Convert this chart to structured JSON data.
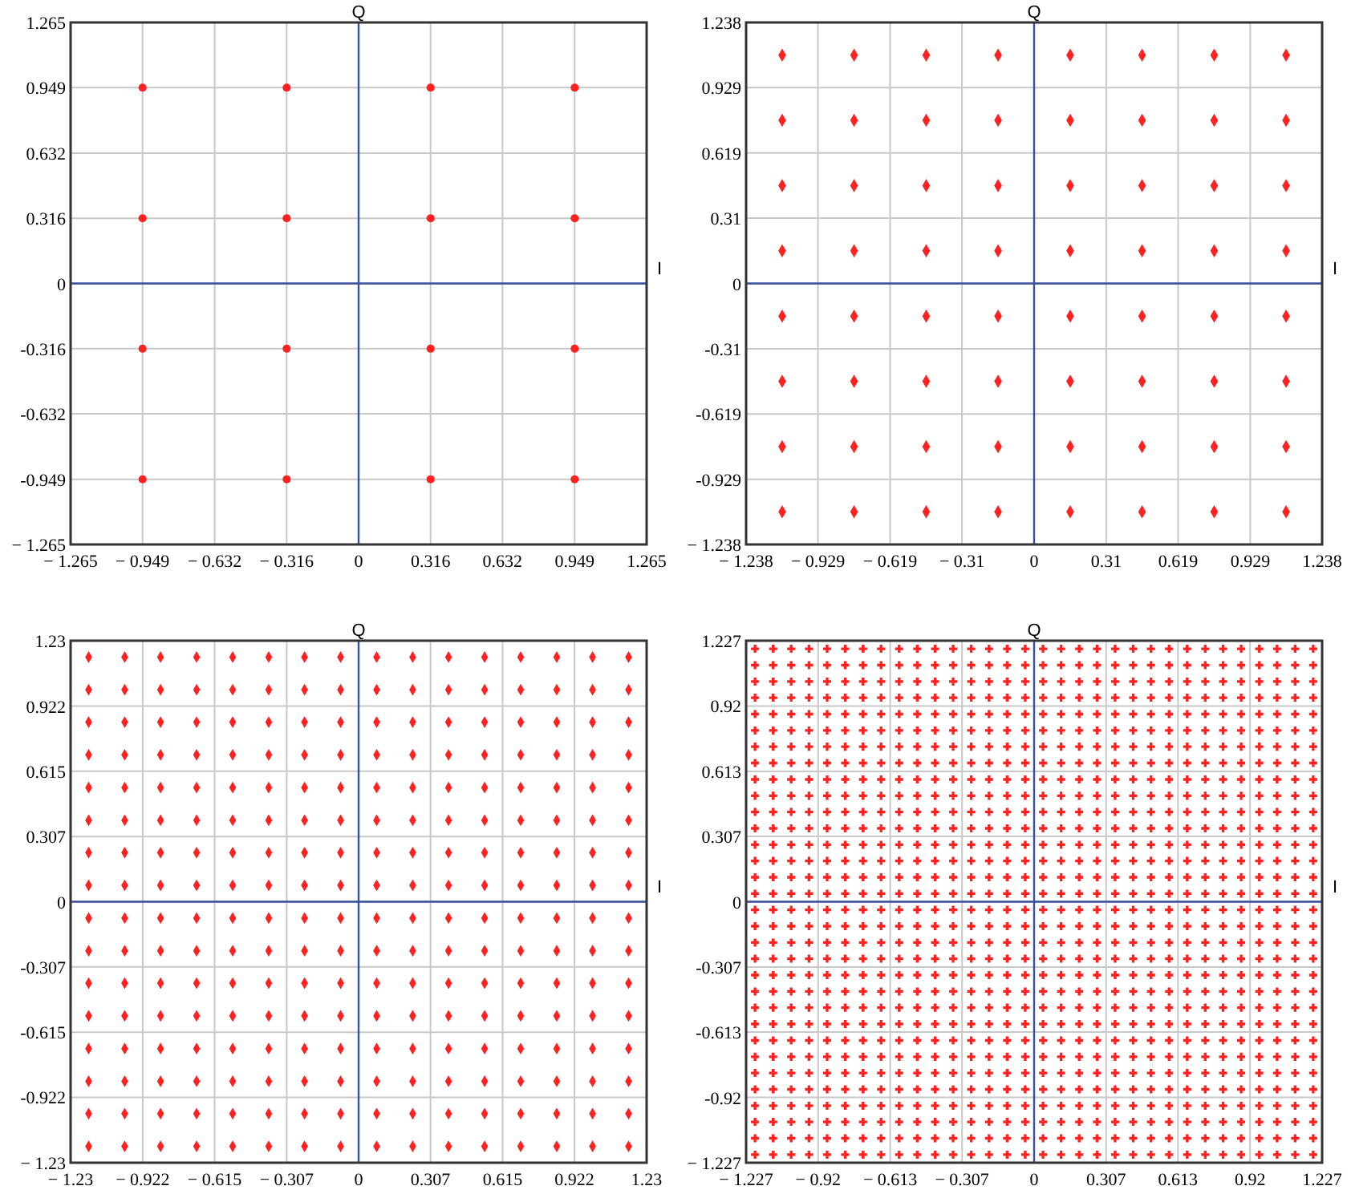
{
  "chart_data": [
    {
      "type": "scatter",
      "xlabel": "I",
      "ylabel": "Q",
      "xlim": [
        -1.265,
        1.265
      ],
      "ylim": [
        -1.265,
        1.265
      ],
      "xticks": [
        {
          "value": -1.265,
          "label": "− 1.265"
        },
        {
          "value": -0.949,
          "label": "− 0.949"
        },
        {
          "value": -0.632,
          "label": "− 0.632"
        },
        {
          "value": -0.316,
          "label": "− 0.316"
        },
        0,
        0.316,
        0.632,
        0.949,
        1.265
      ],
      "yticks": [
        {
          "value": -1.265,
          "label": "− 1.265"
        },
        {
          "value": -0.949,
          "label": "-0.949"
        },
        {
          "value": -0.632,
          "label": "-0.632"
        },
        {
          "value": -0.316,
          "label": "-0.316"
        },
        0,
        0.316,
        0.632,
        0.949,
        1.265
      ],
      "grid": true,
      "marker": "circle",
      "x": [
        -0.949,
        -0.316,
        0.316,
        0.949
      ],
      "series": [
        {
          "color": "#ff2020",
          "values": [
            0.949,
            0.949,
            0.949,
            0.949
          ]
        },
        {
          "color": "#ff2020",
          "values": [
            0.316,
            0.316,
            0.316,
            0.316
          ]
        },
        {
          "color": "#ff2020",
          "values": [
            -0.316,
            -0.316,
            -0.316,
            -0.316
          ]
        },
        {
          "color": "#ff2020",
          "values": [
            -0.949,
            -0.949,
            -0.949,
            -0.949
          ]
        }
      ]
    },
    {
      "type": "scatter",
      "xlabel": "I",
      "ylabel": "Q",
      "xlim": [
        -1.238,
        1.238
      ],
      "ylim": [
        -1.238,
        1.238
      ],
      "xticks": [
        {
          "value": -1.238,
          "label": "− 1.238"
        },
        {
          "value": -0.929,
          "label": "− 0.929"
        },
        {
          "value": -0.619,
          "label": "− 0.619"
        },
        {
          "value": -0.31,
          "label": "− 0.31"
        },
        0,
        0.31,
        0.619,
        0.929,
        1.238
      ],
      "yticks": [
        {
          "value": -1.238,
          "label": "− 1.238"
        },
        {
          "value": -0.929,
          "label": "-0.929"
        },
        {
          "value": -0.619,
          "label": "-0.619"
        },
        {
          "value": -0.31,
          "label": "-0.31"
        },
        0,
        0.31,
        0.619,
        0.929,
        1.238
      ],
      "grid": true,
      "marker": "diamond",
      "x": [
        -1.083,
        -0.774,
        -0.464,
        -0.155,
        0.155,
        0.464,
        0.774,
        1.083
      ],
      "series": [
        {
          "color": "#ff2020",
          "values": [
            1.083,
            1.083,
            1.083,
            1.083,
            1.083,
            1.083,
            1.083,
            1.083
          ]
        },
        {
          "color": "#ff2020",
          "values": [
            0.774,
            0.774,
            0.774,
            0.774,
            0.774,
            0.774,
            0.774,
            0.774
          ]
        },
        {
          "color": "#ff2020",
          "values": [
            0.464,
            0.464,
            0.464,
            0.464,
            0.464,
            0.464,
            0.464,
            0.464
          ]
        },
        {
          "color": "#ff2020",
          "values": [
            0.155,
            0.155,
            0.155,
            0.155,
            0.155,
            0.155,
            0.155,
            0.155
          ]
        },
        {
          "color": "#ff2020",
          "values": [
            -0.155,
            -0.155,
            -0.155,
            -0.155,
            -0.155,
            -0.155,
            -0.155,
            -0.155
          ]
        },
        {
          "color": "#ff2020",
          "values": [
            -0.464,
            -0.464,
            -0.464,
            -0.464,
            -0.464,
            -0.464,
            -0.464,
            -0.464
          ]
        },
        {
          "color": "#ff2020",
          "values": [
            -0.774,
            -0.774,
            -0.774,
            -0.774,
            -0.774,
            -0.774,
            -0.774,
            -0.774
          ]
        },
        {
          "color": "#ff2020",
          "values": [
            -1.083,
            -1.083,
            -1.083,
            -1.083,
            -1.083,
            -1.083,
            -1.083,
            -1.083
          ]
        }
      ]
    },
    {
      "type": "scatter",
      "xlabel": "I",
      "ylabel": "Q",
      "xlim": [
        -1.23,
        1.23
      ],
      "ylim": [
        -1.23,
        1.23
      ],
      "xticks": [
        {
          "value": -1.23,
          "label": "− 1.23"
        },
        {
          "value": -0.922,
          "label": "− 0.922"
        },
        {
          "value": -0.615,
          "label": "− 0.615"
        },
        {
          "value": -0.307,
          "label": "− 0.307"
        },
        0,
        0.307,
        0.615,
        0.922,
        1.23
      ],
      "yticks": [
        {
          "value": -1.23,
          "label": "− 1.23"
        },
        {
          "value": -0.922,
          "label": "-0.922"
        },
        {
          "value": -0.615,
          "label": "-0.615"
        },
        {
          "value": -0.307,
          "label": "-0.307"
        },
        0,
        0.307,
        0.615,
        0.922,
        1.23
      ],
      "grid": true,
      "marker": "diamond",
      "x": [
        -1.153,
        -0.999,
        -0.846,
        -0.692,
        -0.538,
        -0.384,
        -0.231,
        -0.077,
        0.077,
        0.231,
        0.384,
        0.538,
        0.692,
        0.846,
        0.999,
        1.153
      ],
      "series": [
        {
          "color": "#ff2020",
          "values": [
            1.153,
            1.153,
            1.153,
            1.153,
            1.153,
            1.153,
            1.153,
            1.153,
            1.153,
            1.153,
            1.153,
            1.153,
            1.153,
            1.153,
            1.153,
            1.153
          ]
        },
        {
          "color": "#ff2020",
          "values": [
            0.999,
            0.999,
            0.999,
            0.999,
            0.999,
            0.999,
            0.999,
            0.999,
            0.999,
            0.999,
            0.999,
            0.999,
            0.999,
            0.999,
            0.999,
            0.999
          ]
        },
        {
          "color": "#ff2020",
          "values": [
            0.846,
            0.846,
            0.846,
            0.846,
            0.846,
            0.846,
            0.846,
            0.846,
            0.846,
            0.846,
            0.846,
            0.846,
            0.846,
            0.846,
            0.846,
            0.846
          ]
        },
        {
          "color": "#ff2020",
          "values": [
            0.692,
            0.692,
            0.692,
            0.692,
            0.692,
            0.692,
            0.692,
            0.692,
            0.692,
            0.692,
            0.692,
            0.692,
            0.692,
            0.692,
            0.692,
            0.692
          ]
        },
        {
          "color": "#ff2020",
          "values": [
            0.538,
            0.538,
            0.538,
            0.538,
            0.538,
            0.538,
            0.538,
            0.538,
            0.538,
            0.538,
            0.538,
            0.538,
            0.538,
            0.538,
            0.538,
            0.538
          ]
        },
        {
          "color": "#ff2020",
          "values": [
            0.384,
            0.384,
            0.384,
            0.384,
            0.384,
            0.384,
            0.384,
            0.384,
            0.384,
            0.384,
            0.384,
            0.384,
            0.384,
            0.384,
            0.384,
            0.384
          ]
        },
        {
          "color": "#ff2020",
          "values": [
            0.231,
            0.231,
            0.231,
            0.231,
            0.231,
            0.231,
            0.231,
            0.231,
            0.231,
            0.231,
            0.231,
            0.231,
            0.231,
            0.231,
            0.231,
            0.231
          ]
        },
        {
          "color": "#ff2020",
          "values": [
            0.077,
            0.077,
            0.077,
            0.077,
            0.077,
            0.077,
            0.077,
            0.077,
            0.077,
            0.077,
            0.077,
            0.077,
            0.077,
            0.077,
            0.077,
            0.077
          ]
        },
        {
          "color": "#ff2020",
          "values": [
            -0.077,
            -0.077,
            -0.077,
            -0.077,
            -0.077,
            -0.077,
            -0.077,
            -0.077,
            -0.077,
            -0.077,
            -0.077,
            -0.077,
            -0.077,
            -0.077,
            -0.077,
            -0.077
          ]
        },
        {
          "color": "#ff2020",
          "values": [
            -0.231,
            -0.231,
            -0.231,
            -0.231,
            -0.231,
            -0.231,
            -0.231,
            -0.231,
            -0.231,
            -0.231,
            -0.231,
            -0.231,
            -0.231,
            -0.231,
            -0.231,
            -0.231
          ]
        },
        {
          "color": "#ff2020",
          "values": [
            -0.384,
            -0.384,
            -0.384,
            -0.384,
            -0.384,
            -0.384,
            -0.384,
            -0.384,
            -0.384,
            -0.384,
            -0.384,
            -0.384,
            -0.384,
            -0.384,
            -0.384,
            -0.384
          ]
        },
        {
          "color": "#ff2020",
          "values": [
            -0.538,
            -0.538,
            -0.538,
            -0.538,
            -0.538,
            -0.538,
            -0.538,
            -0.538,
            -0.538,
            -0.538,
            -0.538,
            -0.538,
            -0.538,
            -0.538,
            -0.538,
            -0.538
          ]
        },
        {
          "color": "#ff2020",
          "values": [
            -0.692,
            -0.692,
            -0.692,
            -0.692,
            -0.692,
            -0.692,
            -0.692,
            -0.692,
            -0.692,
            -0.692,
            -0.692,
            -0.692,
            -0.692,
            -0.692,
            -0.692,
            -0.692
          ]
        },
        {
          "color": "#ff2020",
          "values": [
            -0.846,
            -0.846,
            -0.846,
            -0.846,
            -0.846,
            -0.846,
            -0.846,
            -0.846,
            -0.846,
            -0.846,
            -0.846,
            -0.846,
            -0.846,
            -0.846,
            -0.846,
            -0.846
          ]
        },
        {
          "color": "#ff2020",
          "values": [
            -0.999,
            -0.999,
            -0.999,
            -0.999,
            -0.999,
            -0.999,
            -0.999,
            -0.999,
            -0.999,
            -0.999,
            -0.999,
            -0.999,
            -0.999,
            -0.999,
            -0.999,
            -0.999
          ]
        },
        {
          "color": "#ff2020",
          "values": [
            -1.153,
            -1.153,
            -1.153,
            -1.153,
            -1.153,
            -1.153,
            -1.153,
            -1.153,
            -1.153,
            -1.153,
            -1.153,
            -1.153,
            -1.153,
            -1.153,
            -1.153,
            -1.153
          ]
        }
      ]
    },
    {
      "type": "scatter",
      "xlabel": "I",
      "ylabel": "Q",
      "xlim": [
        -1.227,
        1.227
      ],
      "ylim": [
        -1.227,
        1.227
      ],
      "xticks": [
        {
          "value": -1.227,
          "label": "− 1.227"
        },
        {
          "value": -0.92,
          "label": "− 0.92"
        },
        {
          "value": -0.613,
          "label": "− 0.613"
        },
        {
          "value": -0.307,
          "label": "− 0.307"
        },
        0,
        0.307,
        0.613,
        0.92,
        1.227
      ],
      "yticks": [
        {
          "value": -1.227,
          "label": "− 1.227"
        },
        {
          "value": -0.92,
          "label": "-0.92"
        },
        {
          "value": -0.613,
          "label": "-0.613"
        },
        {
          "value": -0.307,
          "label": "-0.307"
        },
        0,
        0.307,
        0.613,
        0.92,
        1.227
      ],
      "grid": true,
      "marker": "cross",
      "x": [
        -1.189,
        -1.112,
        -1.035,
        -0.959,
        -0.882,
        -0.805,
        -0.729,
        -0.652,
        -0.575,
        -0.498,
        -0.422,
        -0.345,
        -0.268,
        -0.192,
        -0.115,
        -0.038,
        0.038,
        0.115,
        0.192,
        0.268,
        0.345,
        0.422,
        0.498,
        0.575,
        0.652,
        0.729,
        0.805,
        0.882,
        0.959,
        1.035,
        1.112,
        1.189
      ],
      "series": [
        {
          "color": "#ff2020",
          "values": [
            1.189,
            1.189,
            1.189,
            1.189,
            1.189,
            1.189,
            1.189,
            1.189,
            1.189,
            1.189,
            1.189,
            1.189,
            1.189,
            1.189,
            1.189,
            1.189,
            1.189,
            1.189,
            1.189,
            1.189,
            1.189,
            1.189,
            1.189,
            1.189,
            1.189,
            1.189,
            1.189,
            1.189,
            1.189,
            1.189,
            1.189,
            1.189
          ]
        },
        {
          "color": "#ff2020",
          "values": [
            1.112,
            1.112,
            1.112,
            1.112,
            1.112,
            1.112,
            1.112,
            1.112,
            1.112,
            1.112,
            1.112,
            1.112,
            1.112,
            1.112,
            1.112,
            1.112,
            1.112,
            1.112,
            1.112,
            1.112,
            1.112,
            1.112,
            1.112,
            1.112,
            1.112,
            1.112,
            1.112,
            1.112,
            1.112,
            1.112,
            1.112,
            1.112
          ]
        },
        {
          "color": "#ff2020",
          "values": [
            1.035,
            1.035,
            1.035,
            1.035,
            1.035,
            1.035,
            1.035,
            1.035,
            1.035,
            1.035,
            1.035,
            1.035,
            1.035,
            1.035,
            1.035,
            1.035,
            1.035,
            1.035,
            1.035,
            1.035,
            1.035,
            1.035,
            1.035,
            1.035,
            1.035,
            1.035,
            1.035,
            1.035,
            1.035,
            1.035,
            1.035,
            1.035
          ]
        },
        {
          "color": "#ff2020",
          "values": [
            0.959,
            0.959,
            0.959,
            0.959,
            0.959,
            0.959,
            0.959,
            0.959,
            0.959,
            0.959,
            0.959,
            0.959,
            0.959,
            0.959,
            0.959,
            0.959,
            0.959,
            0.959,
            0.959,
            0.959,
            0.959,
            0.959,
            0.959,
            0.959,
            0.959,
            0.959,
            0.959,
            0.959,
            0.959,
            0.959,
            0.959,
            0.959
          ]
        },
        {
          "color": "#ff2020",
          "values": [
            0.882,
            0.882,
            0.882,
            0.882,
            0.882,
            0.882,
            0.882,
            0.882,
            0.882,
            0.882,
            0.882,
            0.882,
            0.882,
            0.882,
            0.882,
            0.882,
            0.882,
            0.882,
            0.882,
            0.882,
            0.882,
            0.882,
            0.882,
            0.882,
            0.882,
            0.882,
            0.882,
            0.882,
            0.882,
            0.882,
            0.882,
            0.882
          ]
        },
        {
          "color": "#ff2020",
          "values": [
            0.805,
            0.805,
            0.805,
            0.805,
            0.805,
            0.805,
            0.805,
            0.805,
            0.805,
            0.805,
            0.805,
            0.805,
            0.805,
            0.805,
            0.805,
            0.805,
            0.805,
            0.805,
            0.805,
            0.805,
            0.805,
            0.805,
            0.805,
            0.805,
            0.805,
            0.805,
            0.805,
            0.805,
            0.805,
            0.805,
            0.805,
            0.805
          ]
        },
        {
          "color": "#ff2020",
          "values": [
            0.729,
            0.729,
            0.729,
            0.729,
            0.729,
            0.729,
            0.729,
            0.729,
            0.729,
            0.729,
            0.729,
            0.729,
            0.729,
            0.729,
            0.729,
            0.729,
            0.729,
            0.729,
            0.729,
            0.729,
            0.729,
            0.729,
            0.729,
            0.729,
            0.729,
            0.729,
            0.729,
            0.729,
            0.729,
            0.729,
            0.729,
            0.729
          ]
        },
        {
          "color": "#ff2020",
          "values": [
            0.652,
            0.652,
            0.652,
            0.652,
            0.652,
            0.652,
            0.652,
            0.652,
            0.652,
            0.652,
            0.652,
            0.652,
            0.652,
            0.652,
            0.652,
            0.652,
            0.652,
            0.652,
            0.652,
            0.652,
            0.652,
            0.652,
            0.652,
            0.652,
            0.652,
            0.652,
            0.652,
            0.652,
            0.652,
            0.652,
            0.652,
            0.652
          ]
        },
        {
          "color": "#ff2020",
          "values": [
            0.575,
            0.575,
            0.575,
            0.575,
            0.575,
            0.575,
            0.575,
            0.575,
            0.575,
            0.575,
            0.575,
            0.575,
            0.575,
            0.575,
            0.575,
            0.575,
            0.575,
            0.575,
            0.575,
            0.575,
            0.575,
            0.575,
            0.575,
            0.575,
            0.575,
            0.575,
            0.575,
            0.575,
            0.575,
            0.575,
            0.575,
            0.575
          ]
        },
        {
          "color": "#ff2020",
          "values": [
            0.498,
            0.498,
            0.498,
            0.498,
            0.498,
            0.498,
            0.498,
            0.498,
            0.498,
            0.498,
            0.498,
            0.498,
            0.498,
            0.498,
            0.498,
            0.498,
            0.498,
            0.498,
            0.498,
            0.498,
            0.498,
            0.498,
            0.498,
            0.498,
            0.498,
            0.498,
            0.498,
            0.498,
            0.498,
            0.498,
            0.498,
            0.498
          ]
        },
        {
          "color": "#ff2020",
          "values": [
            0.422,
            0.422,
            0.422,
            0.422,
            0.422,
            0.422,
            0.422,
            0.422,
            0.422,
            0.422,
            0.422,
            0.422,
            0.422,
            0.422,
            0.422,
            0.422,
            0.422,
            0.422,
            0.422,
            0.422,
            0.422,
            0.422,
            0.422,
            0.422,
            0.422,
            0.422,
            0.422,
            0.422,
            0.422,
            0.422,
            0.422,
            0.422
          ]
        },
        {
          "color": "#ff2020",
          "values": [
            0.345,
            0.345,
            0.345,
            0.345,
            0.345,
            0.345,
            0.345,
            0.345,
            0.345,
            0.345,
            0.345,
            0.345,
            0.345,
            0.345,
            0.345,
            0.345,
            0.345,
            0.345,
            0.345,
            0.345,
            0.345,
            0.345,
            0.345,
            0.345,
            0.345,
            0.345,
            0.345,
            0.345,
            0.345,
            0.345,
            0.345,
            0.345
          ]
        },
        {
          "color": "#ff2020",
          "values": [
            0.268,
            0.268,
            0.268,
            0.268,
            0.268,
            0.268,
            0.268,
            0.268,
            0.268,
            0.268,
            0.268,
            0.268,
            0.268,
            0.268,
            0.268,
            0.268,
            0.268,
            0.268,
            0.268,
            0.268,
            0.268,
            0.268,
            0.268,
            0.268,
            0.268,
            0.268,
            0.268,
            0.268,
            0.268,
            0.268,
            0.268,
            0.268
          ]
        },
        {
          "color": "#ff2020",
          "values": [
            0.192,
            0.192,
            0.192,
            0.192,
            0.192,
            0.192,
            0.192,
            0.192,
            0.192,
            0.192,
            0.192,
            0.192,
            0.192,
            0.192,
            0.192,
            0.192,
            0.192,
            0.192,
            0.192,
            0.192,
            0.192,
            0.192,
            0.192,
            0.192,
            0.192,
            0.192,
            0.192,
            0.192,
            0.192,
            0.192,
            0.192,
            0.192
          ]
        },
        {
          "color": "#ff2020",
          "values": [
            0.115,
            0.115,
            0.115,
            0.115,
            0.115,
            0.115,
            0.115,
            0.115,
            0.115,
            0.115,
            0.115,
            0.115,
            0.115,
            0.115,
            0.115,
            0.115,
            0.115,
            0.115,
            0.115,
            0.115,
            0.115,
            0.115,
            0.115,
            0.115,
            0.115,
            0.115,
            0.115,
            0.115,
            0.115,
            0.115,
            0.115,
            0.115
          ]
        },
        {
          "color": "#ff2020",
          "values": [
            0.038,
            0.038,
            0.038,
            0.038,
            0.038,
            0.038,
            0.038,
            0.038,
            0.038,
            0.038,
            0.038,
            0.038,
            0.038,
            0.038,
            0.038,
            0.038,
            0.038,
            0.038,
            0.038,
            0.038,
            0.038,
            0.038,
            0.038,
            0.038,
            0.038,
            0.038,
            0.038,
            0.038,
            0.038,
            0.038,
            0.038,
            0.038
          ]
        },
        {
          "color": "#ff2020",
          "values": [
            -0.038,
            -0.038,
            -0.038,
            -0.038,
            -0.038,
            -0.038,
            -0.038,
            -0.038,
            -0.038,
            -0.038,
            -0.038,
            -0.038,
            -0.038,
            -0.038,
            -0.038,
            -0.038,
            -0.038,
            -0.038,
            -0.038,
            -0.038,
            -0.038,
            -0.038,
            -0.038,
            -0.038,
            -0.038,
            -0.038,
            -0.038,
            -0.038,
            -0.038,
            -0.038,
            -0.038,
            -0.038
          ]
        },
        {
          "color": "#ff2020",
          "values": [
            -0.115,
            -0.115,
            -0.115,
            -0.115,
            -0.115,
            -0.115,
            -0.115,
            -0.115,
            -0.115,
            -0.115,
            -0.115,
            -0.115,
            -0.115,
            -0.115,
            -0.115,
            -0.115,
            -0.115,
            -0.115,
            -0.115,
            -0.115,
            -0.115,
            -0.115,
            -0.115,
            -0.115,
            -0.115,
            -0.115,
            -0.115,
            -0.115,
            -0.115,
            -0.115,
            -0.115,
            -0.115
          ]
        },
        {
          "color": "#ff2020",
          "values": [
            -0.192,
            -0.192,
            -0.192,
            -0.192,
            -0.192,
            -0.192,
            -0.192,
            -0.192,
            -0.192,
            -0.192,
            -0.192,
            -0.192,
            -0.192,
            -0.192,
            -0.192,
            -0.192,
            -0.192,
            -0.192,
            -0.192,
            -0.192,
            -0.192,
            -0.192,
            -0.192,
            -0.192,
            -0.192,
            -0.192,
            -0.192,
            -0.192,
            -0.192,
            -0.192,
            -0.192,
            -0.192
          ]
        },
        {
          "color": "#ff2020",
          "values": [
            -0.268,
            -0.268,
            -0.268,
            -0.268,
            -0.268,
            -0.268,
            -0.268,
            -0.268,
            -0.268,
            -0.268,
            -0.268,
            -0.268,
            -0.268,
            -0.268,
            -0.268,
            -0.268,
            -0.268,
            -0.268,
            -0.268,
            -0.268,
            -0.268,
            -0.268,
            -0.268,
            -0.268,
            -0.268,
            -0.268,
            -0.268,
            -0.268,
            -0.268,
            -0.268,
            -0.268,
            -0.268
          ]
        },
        {
          "color": "#ff2020",
          "values": [
            -0.345,
            -0.345,
            -0.345,
            -0.345,
            -0.345,
            -0.345,
            -0.345,
            -0.345,
            -0.345,
            -0.345,
            -0.345,
            -0.345,
            -0.345,
            -0.345,
            -0.345,
            -0.345,
            -0.345,
            -0.345,
            -0.345,
            -0.345,
            -0.345,
            -0.345,
            -0.345,
            -0.345,
            -0.345,
            -0.345,
            -0.345,
            -0.345,
            -0.345,
            -0.345,
            -0.345,
            -0.345
          ]
        },
        {
          "color": "#ff2020",
          "values": [
            -0.422,
            -0.422,
            -0.422,
            -0.422,
            -0.422,
            -0.422,
            -0.422,
            -0.422,
            -0.422,
            -0.422,
            -0.422,
            -0.422,
            -0.422,
            -0.422,
            -0.422,
            -0.422,
            -0.422,
            -0.422,
            -0.422,
            -0.422,
            -0.422,
            -0.422,
            -0.422,
            -0.422,
            -0.422,
            -0.422,
            -0.422,
            -0.422,
            -0.422,
            -0.422,
            -0.422,
            -0.422
          ]
        },
        {
          "color": "#ff2020",
          "values": [
            -0.498,
            -0.498,
            -0.498,
            -0.498,
            -0.498,
            -0.498,
            -0.498,
            -0.498,
            -0.498,
            -0.498,
            -0.498,
            -0.498,
            -0.498,
            -0.498,
            -0.498,
            -0.498,
            -0.498,
            -0.498,
            -0.498,
            -0.498,
            -0.498,
            -0.498,
            -0.498,
            -0.498,
            -0.498,
            -0.498,
            -0.498,
            -0.498,
            -0.498,
            -0.498,
            -0.498,
            -0.498
          ]
        },
        {
          "color": "#ff2020",
          "values": [
            -0.575,
            -0.575,
            -0.575,
            -0.575,
            -0.575,
            -0.575,
            -0.575,
            -0.575,
            -0.575,
            -0.575,
            -0.575,
            -0.575,
            -0.575,
            -0.575,
            -0.575,
            -0.575,
            -0.575,
            -0.575,
            -0.575,
            -0.575,
            -0.575,
            -0.575,
            -0.575,
            -0.575,
            -0.575,
            -0.575,
            -0.575,
            -0.575,
            -0.575,
            -0.575,
            -0.575,
            -0.575
          ]
        },
        {
          "color": "#ff2020",
          "values": [
            -0.652,
            -0.652,
            -0.652,
            -0.652,
            -0.652,
            -0.652,
            -0.652,
            -0.652,
            -0.652,
            -0.652,
            -0.652,
            -0.652,
            -0.652,
            -0.652,
            -0.652,
            -0.652,
            -0.652,
            -0.652,
            -0.652,
            -0.652,
            -0.652,
            -0.652,
            -0.652,
            -0.652,
            -0.652,
            -0.652,
            -0.652,
            -0.652,
            -0.652,
            -0.652,
            -0.652,
            -0.652
          ]
        },
        {
          "color": "#ff2020",
          "values": [
            -0.729,
            -0.729,
            -0.729,
            -0.729,
            -0.729,
            -0.729,
            -0.729,
            -0.729,
            -0.729,
            -0.729,
            -0.729,
            -0.729,
            -0.729,
            -0.729,
            -0.729,
            -0.729,
            -0.729,
            -0.729,
            -0.729,
            -0.729,
            -0.729,
            -0.729,
            -0.729,
            -0.729,
            -0.729,
            -0.729,
            -0.729,
            -0.729,
            -0.729,
            -0.729,
            -0.729,
            -0.729
          ]
        },
        {
          "color": "#ff2020",
          "values": [
            -0.805,
            -0.805,
            -0.805,
            -0.805,
            -0.805,
            -0.805,
            -0.805,
            -0.805,
            -0.805,
            -0.805,
            -0.805,
            -0.805,
            -0.805,
            -0.805,
            -0.805,
            -0.805,
            -0.805,
            -0.805,
            -0.805,
            -0.805,
            -0.805,
            -0.805,
            -0.805,
            -0.805,
            -0.805,
            -0.805,
            -0.805,
            -0.805,
            -0.805,
            -0.805,
            -0.805,
            -0.805
          ]
        },
        {
          "color": "#ff2020",
          "values": [
            -0.882,
            -0.882,
            -0.882,
            -0.882,
            -0.882,
            -0.882,
            -0.882,
            -0.882,
            -0.882,
            -0.882,
            -0.882,
            -0.882,
            -0.882,
            -0.882,
            -0.882,
            -0.882,
            -0.882,
            -0.882,
            -0.882,
            -0.882,
            -0.882,
            -0.882,
            -0.882,
            -0.882,
            -0.882,
            -0.882,
            -0.882,
            -0.882,
            -0.882,
            -0.882,
            -0.882,
            -0.882
          ]
        },
        {
          "color": "#ff2020",
          "values": [
            -0.959,
            -0.959,
            -0.959,
            -0.959,
            -0.959,
            -0.959,
            -0.959,
            -0.959,
            -0.959,
            -0.959,
            -0.959,
            -0.959,
            -0.959,
            -0.959,
            -0.959,
            -0.959,
            -0.959,
            -0.959,
            -0.959,
            -0.959,
            -0.959,
            -0.959,
            -0.959,
            -0.959,
            -0.959,
            -0.959,
            -0.959,
            -0.959,
            -0.959,
            -0.959,
            -0.959,
            -0.959
          ]
        },
        {
          "color": "#ff2020",
          "values": [
            -1.035,
            -1.035,
            -1.035,
            -1.035,
            -1.035,
            -1.035,
            -1.035,
            -1.035,
            -1.035,
            -1.035,
            -1.035,
            -1.035,
            -1.035,
            -1.035,
            -1.035,
            -1.035,
            -1.035,
            -1.035,
            -1.035,
            -1.035,
            -1.035,
            -1.035,
            -1.035,
            -1.035,
            -1.035,
            -1.035,
            -1.035,
            -1.035,
            -1.035,
            -1.035,
            -1.035,
            -1.035
          ]
        },
        {
          "color": "#ff2020",
          "values": [
            -1.112,
            -1.112,
            -1.112,
            -1.112,
            -1.112,
            -1.112,
            -1.112,
            -1.112,
            -1.112,
            -1.112,
            -1.112,
            -1.112,
            -1.112,
            -1.112,
            -1.112,
            -1.112,
            -1.112,
            -1.112,
            -1.112,
            -1.112,
            -1.112,
            -1.112,
            -1.112,
            -1.112,
            -1.112,
            -1.112,
            -1.112,
            -1.112,
            -1.112,
            -1.112,
            -1.112,
            -1.112
          ]
        },
        {
          "color": "#ff2020",
          "values": [
            -1.189,
            -1.189,
            -1.189,
            -1.189,
            -1.189,
            -1.189,
            -1.189,
            -1.189,
            -1.189,
            -1.189,
            -1.189,
            -1.189,
            -1.189,
            -1.189,
            -1.189,
            -1.189,
            -1.189,
            -1.189,
            -1.189,
            -1.189,
            -1.189,
            -1.189,
            -1.189,
            -1.189,
            -1.189,
            -1.189,
            -1.189,
            -1.189,
            -1.189,
            -1.189,
            -1.189,
            -1.189
          ]
        }
      ]
    }
  ]
}
